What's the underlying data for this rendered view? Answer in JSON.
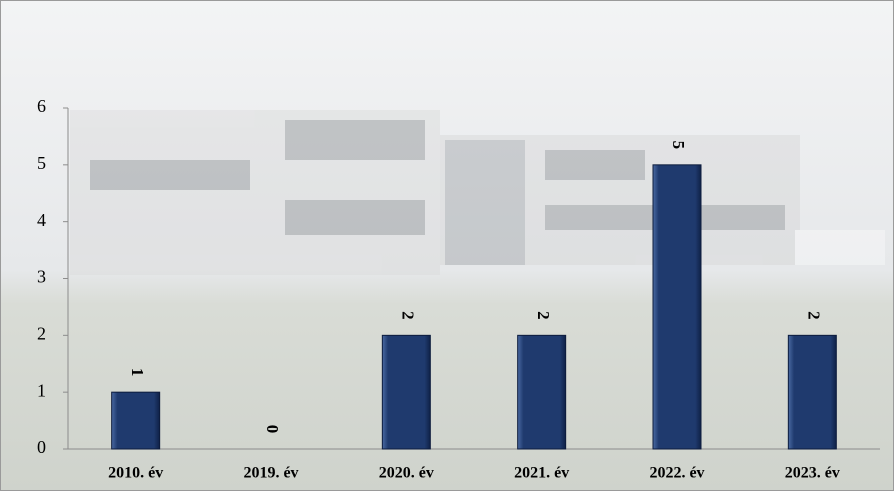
{
  "chart_data": {
    "type": "bar",
    "categories": [
      "2010. év",
      "2019. év",
      "2020. év",
      "2021. év",
      "2022. év",
      "2023. év"
    ],
    "values": [
      1,
      0,
      2,
      2,
      5,
      2
    ],
    "color": "#1f3a6e",
    "ylim": [
      0,
      6
    ],
    "yticks": [
      0,
      1,
      2,
      3,
      4,
      5,
      6
    ]
  }
}
